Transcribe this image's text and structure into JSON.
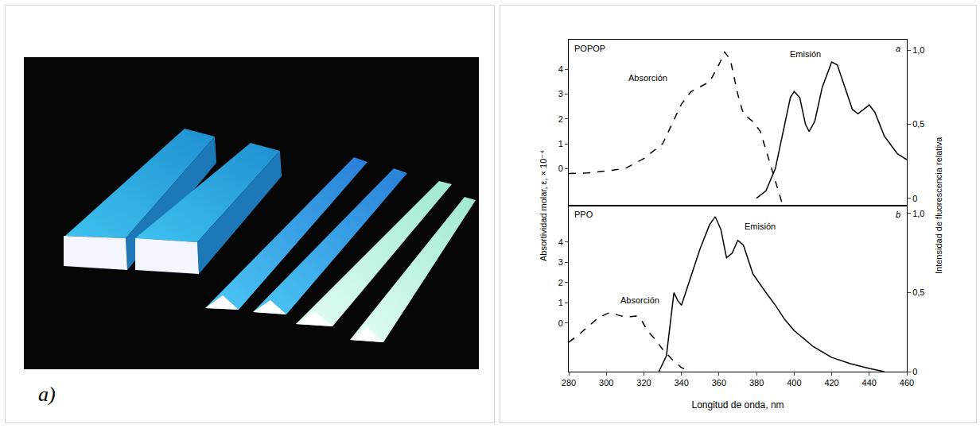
{
  "panel_labels": [
    "a)",
    "b)"
  ],
  "ylabel": "Absortividad molar, ε, × 10⁻⁴",
  "y2label": "Intensidad de fluorescencia relativa",
  "chart_data": [
    {
      "type": "line",
      "title": "POPOP",
      "panel_label": "a",
      "tick_labels": "y",
      "grid": false,
      "xlim": [
        280,
        460
      ],
      "xticks": [
        280,
        300,
        320,
        340,
        360,
        380,
        400,
        420,
        440,
        460
      ],
      "ylim": [
        -1.5,
        5.2
      ],
      "yticks": [
        0,
        1,
        2,
        3,
        4
      ],
      "y2lim": [
        -0.05,
        1.07
      ],
      "y2ticks": [
        0,
        {
          "value": 0.5,
          "label": "0,5"
        },
        {
          "value": 1,
          "label": "1,0"
        }
      ],
      "series": [
        {
          "axis": "y",
          "line_style": "dash",
          "color": "#000000",
          "x": [
            280,
            290,
            300,
            310,
            320,
            330,
            340,
            345,
            350,
            355,
            360,
            363,
            366,
            370,
            373,
            378,
            382,
            386,
            390,
            394
          ],
          "values": [
            -0.2,
            -0.18,
            -0.1,
            0.0,
            0.4,
            1.0,
            2.6,
            3.1,
            3.3,
            3.5,
            4.2,
            4.7,
            4.4,
            3.0,
            2.2,
            1.9,
            1.5,
            0.5,
            -0.5,
            -1.5
          ]
        },
        {
          "axis": "y2",
          "line_style": "solid",
          "color": "#000000",
          "x": [
            380,
            385,
            390,
            395,
            398,
            400,
            403,
            406,
            408,
            411,
            415,
            420,
            423,
            427,
            431,
            434,
            437,
            440,
            443,
            448,
            455,
            460
          ],
          "values": [
            0,
            0.05,
            0.2,
            0.5,
            0.68,
            0.72,
            0.68,
            0.5,
            0.45,
            0.52,
            0.75,
            0.92,
            0.9,
            0.75,
            0.6,
            0.57,
            0.6,
            0.63,
            0.58,
            0.42,
            0.3,
            0.26
          ]
        }
      ],
      "annotations": [
        {
          "text": "Absorción",
          "x": 322,
          "y": 3.4,
          "axis": "y"
        },
        {
          "text": "Emisión",
          "x": 406,
          "y": 0.93,
          "axis": "y2"
        }
      ]
    },
    {
      "type": "line",
      "title": "PPO",
      "panel_label": "b",
      "grid": false,
      "xlabel": "Longitud de onda, nm",
      "xlim": [
        280,
        460
      ],
      "xticks": [
        280,
        300,
        320,
        340,
        360,
        380,
        400,
        420,
        440,
        460
      ],
      "ylim": [
        -2.4,
        5.8
      ],
      "yticks": [
        0,
        1,
        2,
        3,
        4
      ],
      "y2lim": [
        0,
        1.05
      ],
      "y2ticks": [
        0,
        {
          "value": 0.5,
          "label": "0,5"
        },
        {
          "value": 1,
          "label": "1,0"
        }
      ],
      "series": [
        {
          "axis": "y",
          "line_style": "dash",
          "color": "#000000",
          "x": [
            280,
            285,
            290,
            295,
            300,
            302,
            306,
            310,
            313,
            316,
            319,
            322,
            326,
            330,
            335,
            340,
            345
          ],
          "values": [
            -0.95,
            -0.6,
            -0.2,
            0.2,
            0.45,
            0.52,
            0.4,
            0.3,
            0.32,
            0.35,
            0.1,
            -0.4,
            -0.8,
            -1.3,
            -1.8,
            -2.2,
            -2.4
          ]
        },
        {
          "axis": "y2",
          "line_style": "solid",
          "color": "#000000",
          "x": [
            328,
            332,
            336,
            338,
            340,
            345,
            350,
            355,
            358,
            361,
            364,
            367,
            370,
            373,
            378,
            385,
            390,
            395,
            400,
            410,
            420,
            430,
            440,
            448
          ],
          "values": [
            0,
            0.1,
            0.5,
            0.45,
            0.42,
            0.6,
            0.78,
            0.93,
            0.98,
            0.9,
            0.72,
            0.75,
            0.83,
            0.8,
            0.62,
            0.5,
            0.42,
            0.33,
            0.26,
            0.16,
            0.09,
            0.05,
            0.02,
            0
          ]
        }
      ],
      "annotations": [
        {
          "text": "Absorción",
          "x": 318,
          "y": 0.8,
          "axis": "y"
        },
        {
          "text": "Emisión",
          "x": 382,
          "y": 0.88,
          "axis": "y2"
        }
      ]
    }
  ]
}
